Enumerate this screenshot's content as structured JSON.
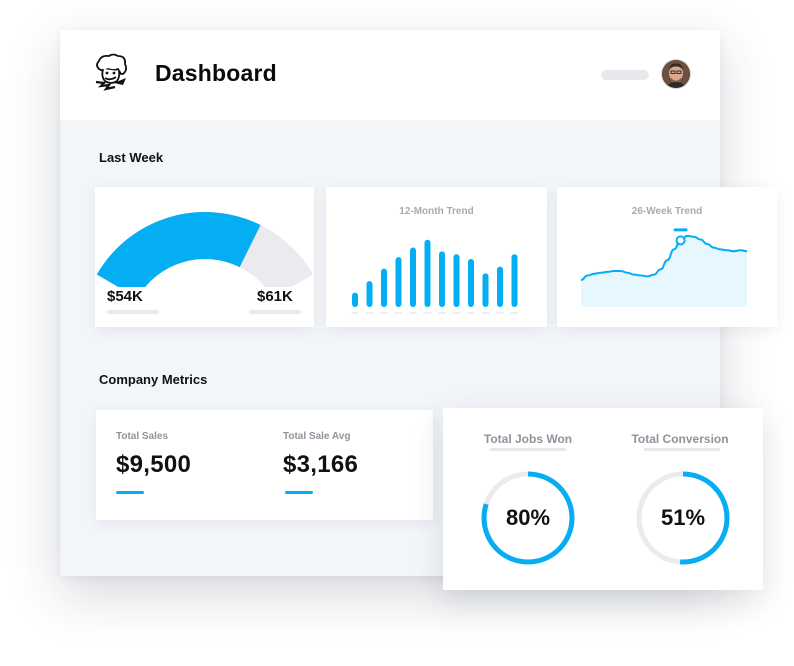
{
  "header": {
    "title": "Dashboard"
  },
  "icons": {
    "logo": "chef-logo",
    "avatar": "user-avatar"
  },
  "colors": {
    "accent": "#05adf2",
    "track": "#e9ebef",
    "area_fill": "#e6f8fe"
  },
  "last_week": {
    "section_title": "Last Week",
    "gauge": {
      "current_label": "$54K",
      "target_label": "$61K",
      "current": 54,
      "target": 61,
      "fill_fraction": 0.72
    },
    "trend_12_month": {
      "title": "12-Month Trend"
    },
    "trend_26_week": {
      "title": "26-Week Trend"
    }
  },
  "company_metrics": {
    "section_title": "Company Metrics",
    "total_sales": {
      "label": "Total Sales",
      "value": "$9,500"
    },
    "total_sale_avg": {
      "label": "Total Sale Avg",
      "value": "$3,166"
    },
    "jobs_won": {
      "label": "Total Jobs Won",
      "value": "80%",
      "percent": 80
    },
    "conversion": {
      "label": "Total Conversion",
      "value": "51%",
      "percent": 51
    }
  },
  "chart_data": [
    {
      "type": "bar",
      "title": "12-Month Trend",
      "values": [
        15,
        27,
        40,
        52,
        62,
        70,
        58,
        55,
        50,
        35,
        42,
        55
      ],
      "ylim": [
        0,
        75
      ]
    },
    {
      "type": "line",
      "title": "26-Week Trend",
      "values": [
        3,
        3.5,
        3.7,
        3.8,
        3.9,
        4,
        4,
        3.8,
        3.6,
        3.5,
        3.4,
        3.6,
        4.2,
        5.2,
        6.4,
        7.4,
        7.9,
        7.8,
        7.5,
        7,
        6.6,
        6.4,
        6.3,
        6.2,
        6.3,
        6.2
      ],
      "highlight_index": 15,
      "ylim": [
        0,
        10
      ]
    }
  ]
}
